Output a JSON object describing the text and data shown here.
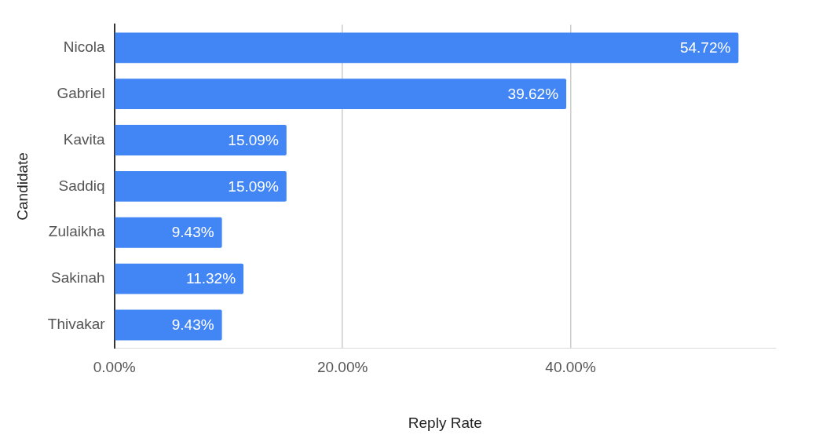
{
  "chart_data": {
    "type": "bar",
    "orientation": "horizontal",
    "xlabel": "Reply Rate",
    "ylabel": "Candidate",
    "categories": [
      "Nicola",
      "Gabriel",
      "Kavita",
      "Saddiq",
      "Zulaikha",
      "Sakinah",
      "Thivakar"
    ],
    "values": [
      54.72,
      39.62,
      15.09,
      15.09,
      9.43,
      11.32,
      9.43
    ],
    "value_labels": [
      "54.72%",
      "39.62%",
      "15.09%",
      "15.09%",
      "9.43%",
      "11.32%",
      "9.43%"
    ],
    "color": "#4285f4",
    "xlim": [
      0,
      58
    ],
    "xticks": [
      {
        "value": 0,
        "label": "0.00%"
      },
      {
        "value": 20,
        "label": "20.00%"
      },
      {
        "value": 40,
        "label": "40.00%"
      }
    ],
    "grid": "x",
    "legend": false
  }
}
